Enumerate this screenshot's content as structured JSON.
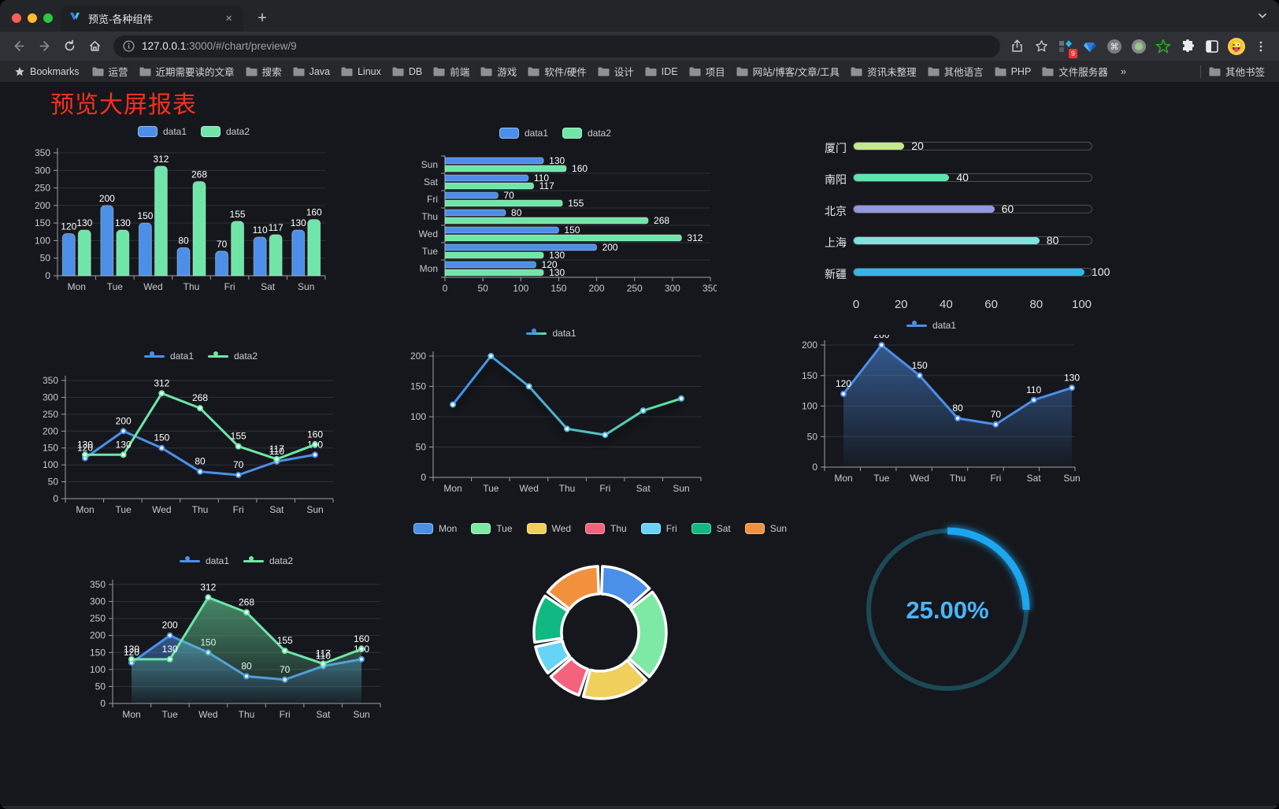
{
  "browser": {
    "tab_title": "预览-各种组件",
    "close_glyph": "×",
    "newtab_glyph": "+",
    "url_host": "127.0.0.1",
    "url_rest": ":3000/#/chart/preview/9",
    "bookmarks_label": "Bookmarks",
    "bookmarks": [
      "运营",
      "近期需要读的文章",
      "搜索",
      "Java",
      "Linux",
      "DB",
      "前端",
      "游戏",
      "软件/硬件",
      "设计",
      "IDE",
      "项目",
      "网站/博客/文章/工具",
      "资讯未整理",
      "其他语言",
      "PHP",
      "文件服务器"
    ],
    "bookmarks_overflow": "»",
    "other_bookmarks": "其他书签",
    "extension_badge": "9",
    "avatar_emoji": "😜",
    "traffic_colors": {
      "close": "#ff5f57",
      "minimize": "#febc2e",
      "zoom": "#28c840"
    }
  },
  "page": {
    "title": "预览大屏报表",
    "title_color": "#f92f20"
  },
  "palette": {
    "data1": "#4c8fe8",
    "data2": "#6fe6a8",
    "axis": "#9ba0a8",
    "grid": "#2e323b",
    "tick_text": "#c6cad2",
    "label_text": "#ffffff"
  },
  "chart_data": [
    {
      "id": "bar-vertical",
      "type": "bar",
      "categories": [
        "Mon",
        "Tue",
        "Wed",
        "Thu",
        "Fri",
        "Sat",
        "Sun"
      ],
      "series": [
        {
          "name": "data1",
          "color": "#4c8fe8",
          "values": [
            120,
            200,
            150,
            80,
            70,
            110,
            130
          ]
        },
        {
          "name": "data2",
          "color": "#6fe6a8",
          "values": [
            130,
            130,
            312,
            268,
            155,
            117,
            160
          ]
        }
      ],
      "ylim": [
        0,
        350
      ],
      "ytick_step": 50,
      "legend_position": "top",
      "data_labels": true,
      "grid": true
    },
    {
      "id": "bar-horizontal",
      "type": "bar-horizontal",
      "categories": [
        "Mon",
        "Tue",
        "Wed",
        "Thu",
        "Fri",
        "Sat",
        "Sun"
      ],
      "series": [
        {
          "name": "data1",
          "color": "#4c8fe8",
          "values": [
            120,
            200,
            150,
            80,
            70,
            110,
            130
          ]
        },
        {
          "name": "data2",
          "color": "#6fe6a8",
          "values": [
            130,
            130,
            312,
            268,
            155,
            117,
            160
          ]
        }
      ],
      "xlim": [
        0,
        350
      ],
      "xtick_step": 50,
      "legend_position": "top",
      "data_labels": true
    },
    {
      "id": "capsule-progress",
      "type": "progress",
      "max": 100,
      "xticks": [
        0,
        20,
        40,
        60,
        80,
        100
      ],
      "items": [
        {
          "label": "厦门",
          "value": 20,
          "color": "#c3e88d"
        },
        {
          "label": "南阳",
          "value": 40,
          "color": "#5fe3ae"
        },
        {
          "label": "北京",
          "value": 60,
          "color": "#9598dd"
        },
        {
          "label": "上海",
          "value": 80,
          "color": "#7fe3df"
        },
        {
          "label": "新疆",
          "value": 100,
          "color": "#35b5e5"
        }
      ]
    },
    {
      "id": "line-basic",
      "type": "line",
      "categories": [
        "Mon",
        "Tue",
        "Wed",
        "Thu",
        "Fri",
        "Sat",
        "Sun"
      ],
      "series": [
        {
          "name": "data1",
          "color": "#4c8fe8",
          "values": [
            120,
            200,
            150,
            80,
            70,
            110,
            130
          ]
        },
        {
          "name": "data2",
          "color": "#6fe6a8",
          "values": [
            130,
            130,
            312,
            268,
            155,
            117,
            160
          ]
        }
      ],
      "ylim": [
        0,
        350
      ],
      "ytick_step": 50,
      "data_labels": true
    },
    {
      "id": "line-gradient",
      "type": "line",
      "categories": [
        "Mon",
        "Tue",
        "Wed",
        "Thu",
        "Fri",
        "Sat",
        "Sun"
      ],
      "series": [
        {
          "name": "data1",
          "color": "#3e8ef0",
          "color_end": "#5fe3a1",
          "gradient_stroke": true,
          "shadow": true,
          "values": [
            120,
            200,
            150,
            80,
            70,
            110,
            130
          ]
        }
      ],
      "ylim": [
        0,
        200
      ],
      "ytick_step": 50,
      "data_labels": false
    },
    {
      "id": "line-area",
      "type": "line",
      "categories": [
        "Mon",
        "Tue",
        "Wed",
        "Thu",
        "Fri",
        "Sat",
        "Sun"
      ],
      "series": [
        {
          "name": "data1",
          "color": "#4c8fe8",
          "area": true,
          "values": [
            120,
            200,
            150,
            80,
            70,
            110,
            130
          ]
        }
      ],
      "ylim": [
        0,
        200
      ],
      "ytick_step": 50,
      "data_labels": true
    },
    {
      "id": "line-area-double",
      "type": "line",
      "categories": [
        "Mon",
        "Tue",
        "Wed",
        "Thu",
        "Fri",
        "Sat",
        "Sun"
      ],
      "series": [
        {
          "name": "data1",
          "color": "#4c8fe8",
          "area": true,
          "values": [
            120,
            200,
            150,
            80,
            70,
            110,
            130
          ]
        },
        {
          "name": "data2",
          "color": "#6fe6a8",
          "area": true,
          "values": [
            130,
            130,
            312,
            268,
            155,
            117,
            160
          ]
        }
      ],
      "ylim": [
        0,
        350
      ],
      "ytick_step": 50,
      "data_labels": true
    },
    {
      "id": "donut",
      "type": "donut",
      "items": [
        {
          "label": "Mon",
          "value": 120,
          "color": "#4a8fe8"
        },
        {
          "label": "Tue",
          "value": 200,
          "color": "#7de9a5"
        },
        {
          "label": "Wed",
          "value": 150,
          "color": "#f0d05c"
        },
        {
          "label": "Thu",
          "value": 80,
          "color": "#f4637c"
        },
        {
          "label": "Fri",
          "value": 70,
          "color": "#66d4f7"
        },
        {
          "label": "Sat",
          "value": 110,
          "color": "#10b981"
        },
        {
          "label": "Sun",
          "value": 130,
          "color": "#f2913d"
        }
      ]
    },
    {
      "id": "gauge",
      "type": "gauge",
      "value": 25,
      "display": "25.00%",
      "color": "#1fa6f0",
      "track_color": "#1c4956",
      "text_color": "#4ab5f5"
    }
  ]
}
